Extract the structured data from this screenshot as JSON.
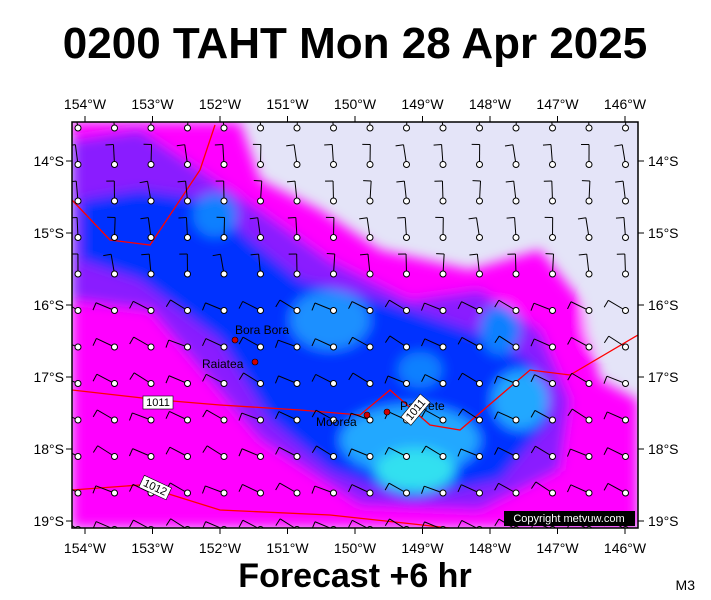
{
  "title": "0200 TAHT Mon 28 Apr 2025",
  "map": {
    "lon_ticks": [
      "154°W",
      "153°W",
      "152°W",
      "151°W",
      "150°W",
      "149°W",
      "148°W",
      "147°W",
      "146°W"
    ],
    "lat_ticks": [
      "14°S",
      "15°S",
      "16°S",
      "17°S",
      "18°S",
      "19°S"
    ],
    "places": [
      "Bora Bora",
      "Raiatea",
      "Moorea",
      "Papeete"
    ],
    "isobar_labels": [
      "1011",
      "1012",
      "1011"
    ],
    "copyright": "Copyright metvuw.com"
  },
  "footer": "Forecast +6 hr",
  "code": "M3"
}
